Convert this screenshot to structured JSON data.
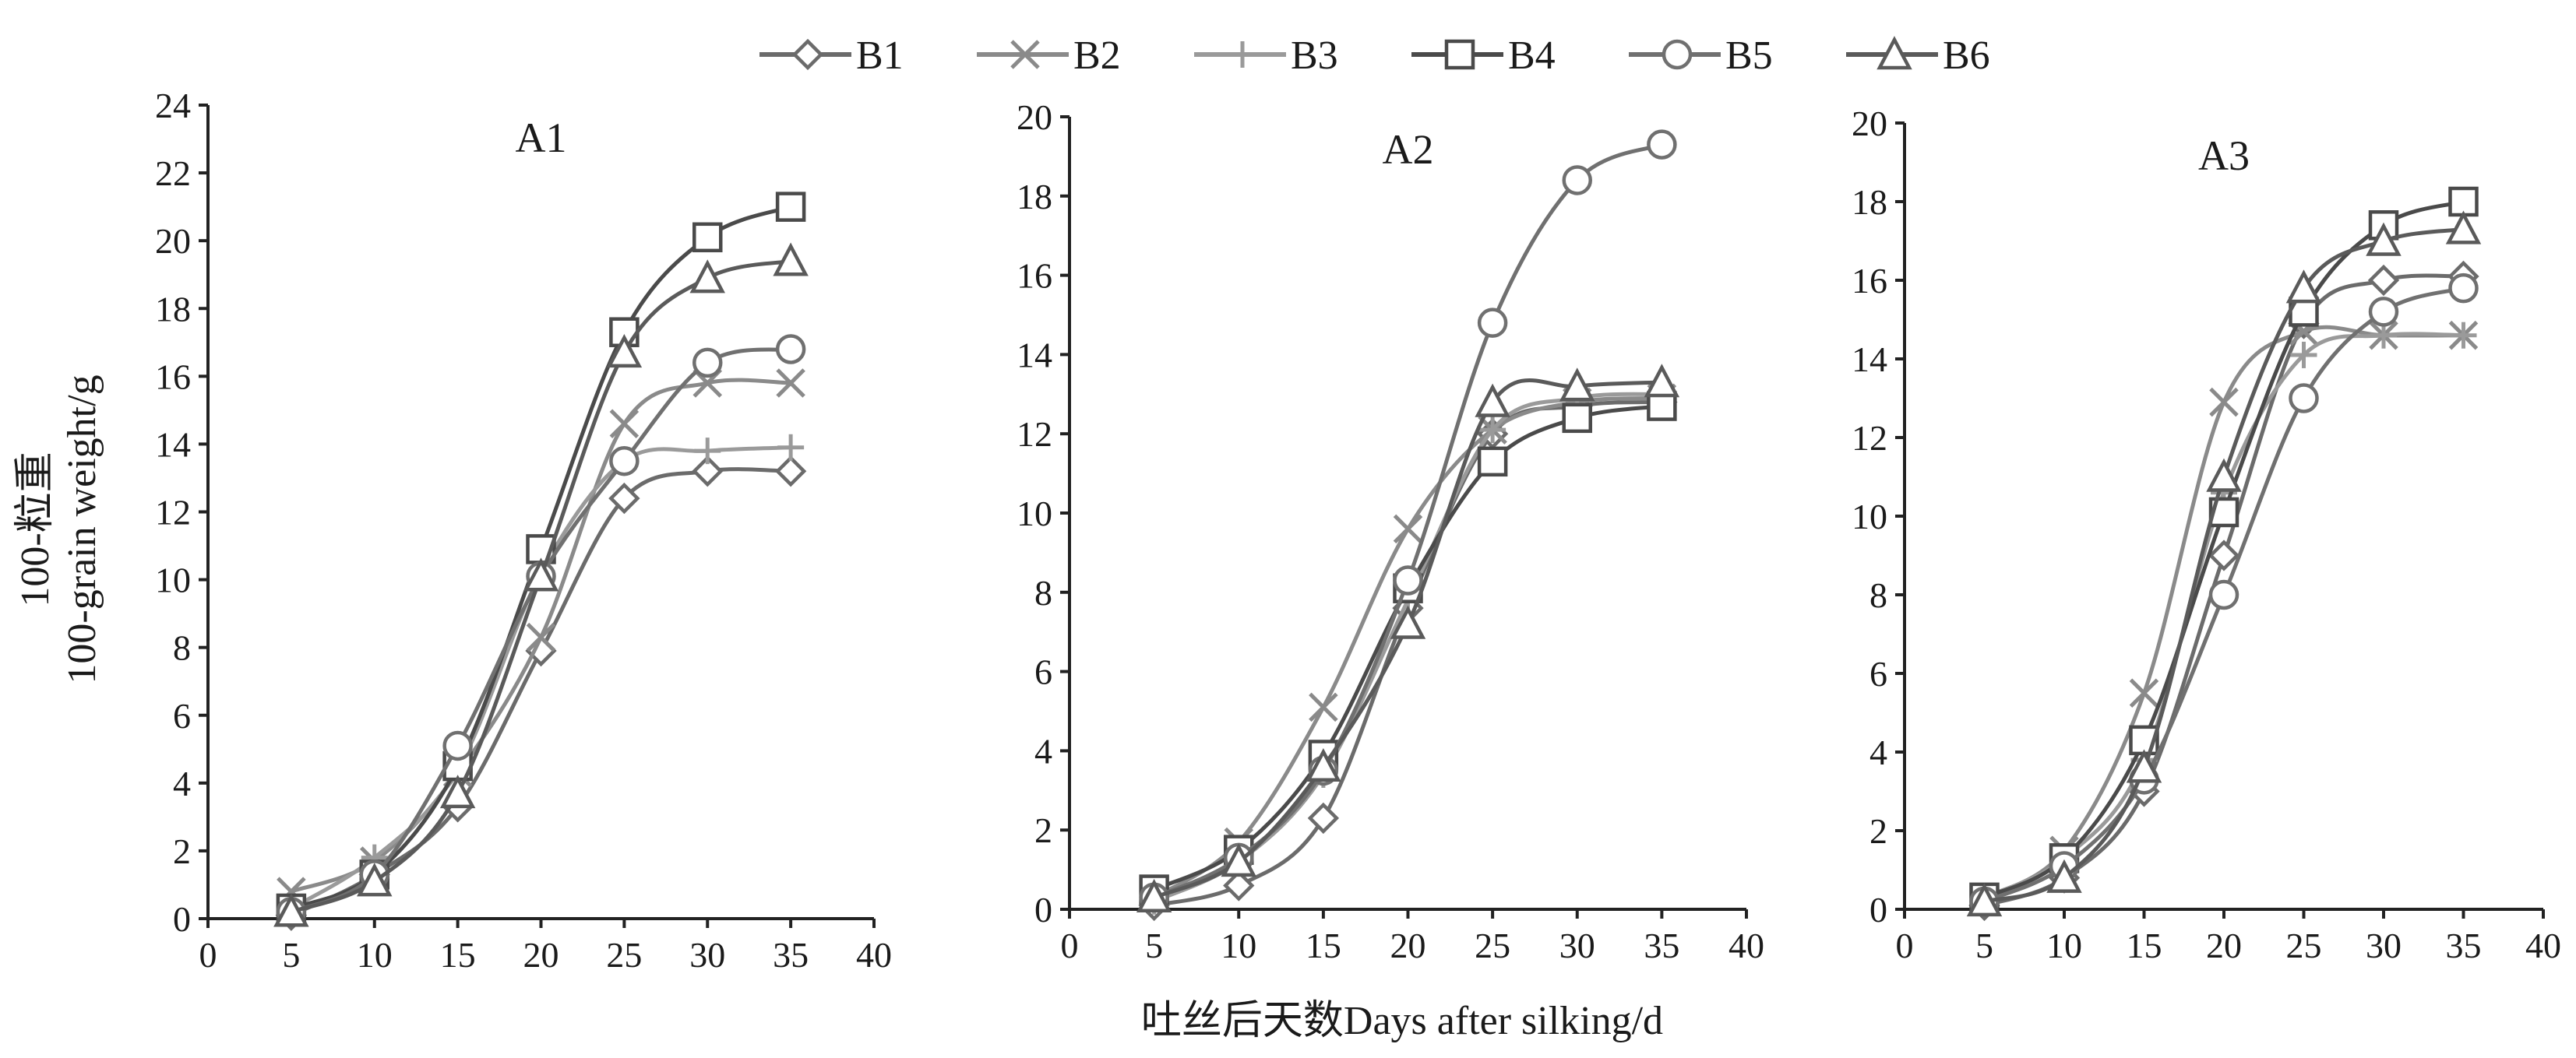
{
  "figure": {
    "y_axis_title_cn": "100-粒重",
    "y_axis_title_en": "100-grain weight/g",
    "x_axis_title": "吐丝后天数Days after silking/d"
  },
  "legend": [
    {
      "label": "B1",
      "marker": "diamond",
      "color": "#6b6b6b"
    },
    {
      "label": "B2",
      "marker": "x",
      "color": "#8a8a8a"
    },
    {
      "label": "B3",
      "marker": "plus",
      "color": "#9a9a9a"
    },
    {
      "label": "B4",
      "marker": "square",
      "color": "#4a4a4a"
    },
    {
      "label": "B5",
      "marker": "circle",
      "color": "#707070"
    },
    {
      "label": "B6",
      "marker": "triangle",
      "color": "#5a5a5a"
    }
  ],
  "chart_data": [
    {
      "type": "line",
      "title": "A1",
      "xlabel": "吐丝后天数Days after silking/d",
      "ylabel": "100-粒重 100-grain weight/g",
      "xlim": [
        0,
        40
      ],
      "ylim": [
        0,
        24
      ],
      "xticks": [
        0,
        5,
        10,
        15,
        20,
        25,
        30,
        35,
        40
      ],
      "yticks": [
        0,
        2,
        4,
        6,
        8,
        10,
        12,
        14,
        16,
        18,
        20,
        22,
        24
      ],
      "x": [
        5,
        10,
        15,
        20,
        25,
        30,
        35
      ],
      "series": [
        {
          "name": "B1",
          "values": [
            0.1,
            1.3,
            3.3,
            7.9,
            12.4,
            13.2,
            13.2
          ]
        },
        {
          "name": "B2",
          "values": [
            0.8,
            1.7,
            4.3,
            8.3,
            14.6,
            15.8,
            15.8
          ]
        },
        {
          "name": "B3",
          "values": [
            0.3,
            1.8,
            4.4,
            10.2,
            13.5,
            13.8,
            13.9
          ]
        },
        {
          "name": "B4",
          "values": [
            0.3,
            1.3,
            4.5,
            10.9,
            17.3,
            20.1,
            21.0
          ]
        },
        {
          "name": "B5",
          "values": [
            0.2,
            1.3,
            5.1,
            10.1,
            13.5,
            16.4,
            16.8
          ]
        },
        {
          "name": "B6",
          "values": [
            0.2,
            1.1,
            3.7,
            10.1,
            16.7,
            18.9,
            19.4
          ]
        }
      ]
    },
    {
      "type": "line",
      "title": "A2",
      "xlabel": "吐丝后天数Days after silking/d",
      "ylabel": "",
      "xlim": [
        0,
        40
      ],
      "ylim": [
        0,
        20
      ],
      "xticks": [
        0,
        5,
        10,
        15,
        20,
        25,
        30,
        35,
        40
      ],
      "yticks": [
        0,
        2,
        4,
        6,
        8,
        10,
        12,
        14,
        16,
        18,
        20
      ],
      "x": [
        5,
        10,
        15,
        20,
        25,
        30,
        35
      ],
      "series": [
        {
          "name": "B1",
          "values": [
            0.1,
            0.6,
            2.3,
            7.6,
            12.0,
            12.7,
            12.8
          ]
        },
        {
          "name": "B2",
          "values": [
            0.3,
            1.7,
            5.1,
            9.6,
            12.1,
            12.8,
            12.9
          ]
        },
        {
          "name": "B3",
          "values": [
            0.2,
            1.2,
            3.4,
            7.8,
            12.1,
            12.9,
            13.0
          ]
        },
        {
          "name": "B4",
          "values": [
            0.5,
            1.5,
            3.9,
            8.1,
            11.3,
            12.4,
            12.7
          ]
        },
        {
          "name": "B5",
          "values": [
            0.3,
            1.3,
            3.5,
            8.3,
            14.8,
            18.4,
            19.3
          ]
        },
        {
          "name": "B6",
          "values": [
            0.3,
            1.2,
            3.6,
            7.2,
            12.8,
            13.2,
            13.3
          ]
        }
      ]
    },
    {
      "type": "line",
      "title": "A3",
      "xlabel": "吐丝后天数Days after silking/d",
      "ylabel": "",
      "xlim": [
        0,
        40
      ],
      "ylim": [
        0,
        20
      ],
      "xticks": [
        0,
        5,
        10,
        15,
        20,
        25,
        30,
        35,
        40
      ],
      "yticks": [
        0,
        2,
        4,
        6,
        8,
        10,
        12,
        14,
        16,
        18,
        20
      ],
      "x": [
        5,
        10,
        15,
        20,
        25,
        30,
        35
      ],
      "series": [
        {
          "name": "B1",
          "values": [
            0.1,
            0.8,
            3.0,
            9.0,
            14.9,
            16.0,
            16.1
          ]
        },
        {
          "name": "B2",
          "values": [
            0.3,
            1.5,
            5.5,
            12.9,
            14.7,
            14.6,
            14.6
          ]
        },
        {
          "name": "B3",
          "values": [
            0.3,
            1.3,
            3.8,
            10.6,
            14.1,
            14.6,
            14.6
          ]
        },
        {
          "name": "B4",
          "values": [
            0.3,
            1.3,
            4.3,
            10.1,
            15.2,
            17.4,
            18.0
          ]
        },
        {
          "name": "B5",
          "values": [
            0.2,
            1.1,
            3.3,
            8.0,
            13.0,
            15.2,
            15.8
          ]
        },
        {
          "name": "B6",
          "values": [
            0.2,
            0.8,
            3.6,
            11.0,
            15.8,
            17.0,
            17.3
          ]
        }
      ]
    }
  ]
}
